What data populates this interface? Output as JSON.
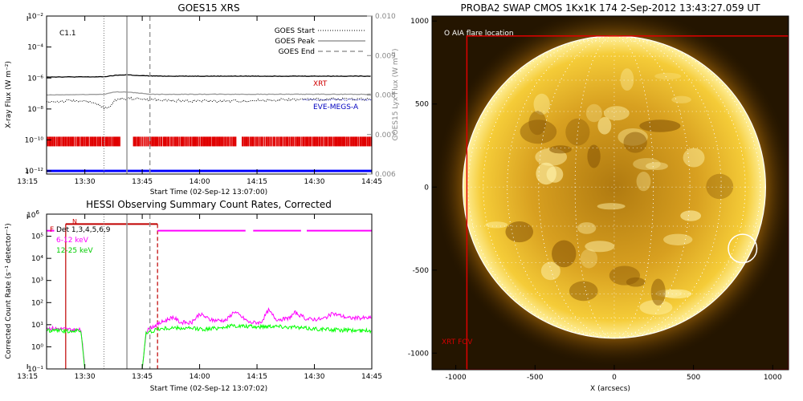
{
  "chart_data": [
    {
      "type": "line",
      "title": "GOES15 XRS",
      "xlabel": "Start Time (02-Sep-12 13:07:00)",
      "ylabel": "X-ray Flux (W m⁻²)",
      "ylabel_right": "GOES15 Lyx Flux (W m⁻²)",
      "xticks": [
        "13:15",
        "13:30",
        "13:45",
        "14:00",
        "14:15",
        "14:30",
        "14:45"
      ],
      "yticks": [
        "10⁻²",
        "10⁻⁴",
        "10⁻⁶",
        "10⁻⁸",
        "10⁻¹⁰",
        "10⁻¹²"
      ],
      "yticks_right": [
        "0.010",
        "0.009",
        "0.008",
        "0.007",
        "0.006"
      ],
      "flare_class": "C1.1",
      "legend": [
        "GOES Start",
        "GOES Peak",
        "GOES End"
      ],
      "legend_position": "top-right",
      "annotations": [
        "XRT",
        "EVE-MEGS-A"
      ],
      "xlim_minutes": [
        13.0,
        98.0
      ],
      "ylim_log10": [
        -12.2,
        -2
      ],
      "ylim_right": [
        0.006,
        0.01
      ],
      "markers_minutes": {
        "start": 28,
        "peak": 34,
        "end": 40
      },
      "series": [
        {
          "color": "#000000",
          "values": [
            [
              13,
              -5.93
            ],
            [
              25,
              -5.93
            ],
            [
              28,
              -5.92
            ],
            [
              31,
              -5.83
            ],
            [
              34,
              -5.79
            ],
            [
              37,
              -5.85
            ],
            [
              44,
              -5.88
            ],
            [
              98,
              -5.88
            ]
          ]
        },
        {
          "color": "#999999",
          "values": [
            [
              13,
              -7.1
            ],
            [
              28,
              -7.05
            ],
            [
              31,
              -6.9
            ],
            [
              34,
              -6.9
            ],
            [
              40,
              -7.05
            ],
            [
              98,
              -7.05
            ]
          ]
        },
        {
          "color": "#000000",
          "dotted": true,
          "values": [
            [
              13,
              -7.55
            ],
            [
              22,
              -7.45
            ],
            [
              26,
              -7.7
            ],
            [
              29,
              -8.0
            ],
            [
              31,
              -7.4
            ],
            [
              34,
              -7.3
            ],
            [
              44,
              -7.45
            ],
            [
              60,
              -7.5
            ],
            [
              75,
              -7.4
            ],
            [
              98,
              -7.35
            ]
          ]
        }
      ],
      "eve_level": -7.4,
      "red_bar_level": -10.1,
      "red_bar_gaps": [
        [
          32.5,
          35.5
        ],
        [
          62.5,
          64
        ]
      ],
      "blue_level": -12.0
    },
    {
      "type": "line",
      "title": "HESSI Observing Summary Count Rates, Corrected",
      "xlabel": "Start Time (02-Sep-12 13:07:02)",
      "ylabel": "Corrected Count Rate (s⁻¹ detector⁻¹)",
      "xticks": [
        "13:15",
        "13:30",
        "13:45",
        "14:00",
        "14:15",
        "14:30",
        "14:45"
      ],
      "yticks": [
        "10⁵",
        "10⁴",
        "10³",
        "10²",
        "10¹",
        "10⁰",
        "10⁻¹"
      ],
      "legend": [
        "Det 1,3,4,5,6,9",
        "6-12 keV",
        "12-25 keV"
      ],
      "legend_position": "top-left",
      "flag_labels": [
        "F",
        "N"
      ],
      "xlim_minutes": [
        13.0,
        98.0
      ],
      "ylim_log10": [
        -1,
        6
      ],
      "markers_minutes": {
        "start": 28,
        "peak": 34,
        "end": 40
      },
      "night_minutes": [
        [
          18,
          42
        ]
      ],
      "series": [
        {
          "name": "6-12 keV",
          "color": "#ff00ff",
          "values": [
            [
              13,
              0.85
            ],
            [
              18,
              0.8
            ],
            [
              22,
              0.75
            ],
            [
              23,
              -1
            ],
            [
              38,
              -1
            ],
            [
              39,
              0.65
            ],
            [
              40,
              0.85
            ],
            [
              43,
              1.1
            ],
            [
              46,
              1.35
            ],
            [
              48,
              1.1
            ],
            [
              51,
              1.1
            ],
            [
              53,
              1.5
            ],
            [
              56,
              1.2
            ],
            [
              60,
              1.2
            ],
            [
              62,
              1.6
            ],
            [
              66,
              1.1
            ],
            [
              69,
              1.1
            ],
            [
              71,
              1.65
            ],
            [
              73,
              1.25
            ],
            [
              76,
              1.25
            ],
            [
              78,
              1.55
            ],
            [
              81,
              1.25
            ],
            [
              85,
              1.25
            ],
            [
              88,
              1.5
            ],
            [
              92,
              1.3
            ],
            [
              98,
              1.3
            ]
          ]
        },
        {
          "name": "12-25 keV",
          "color": "#00ff00",
          "values": [
            [
              13,
              0.75
            ],
            [
              18,
              0.72
            ],
            [
              22,
              0.72
            ],
            [
              23,
              -1
            ],
            [
              38,
              -1
            ],
            [
              39,
              0.6
            ],
            [
              42,
              0.8
            ],
            [
              46,
              0.85
            ],
            [
              55,
              0.8
            ],
            [
              62,
              0.95
            ],
            [
              68,
              0.9
            ],
            [
              72,
              0.95
            ],
            [
              80,
              0.85
            ],
            [
              90,
              0.75
            ],
            [
              98,
              0.72
            ]
          ]
        }
      ],
      "magenta_flag_level": 5.25,
      "magenta_flag_gaps": [
        [
          65,
          67
        ],
        [
          79.5,
          81
        ]
      ],
      "red_flag_level": 5.55
    },
    {
      "type": "heatmap",
      "title": "PROBA2 SWAP CMOS 1Kx1K 174  2-Sep-2012 13:43:27.059 UT",
      "xlabel": "X (arcsecs)",
      "xticks": [
        "-1000",
        "-500",
        "0",
        "500",
        "1000"
      ],
      "yticks": [
        "1000",
        "500",
        "0",
        "-500",
        "-1000"
      ],
      "xlim": [
        -1150,
        1100
      ],
      "ylim": [
        -1100,
        1030
      ],
      "annotations": [
        "O AIA flare location",
        "XRT FOV"
      ],
      "flare_location": [
        810,
        -370
      ],
      "flare_radius": 90,
      "solar_radius": 955,
      "xrt_fov": {
        "x": [
          -930,
          1100
        ],
        "y": [
          -1100,
          910
        ]
      }
    }
  ]
}
